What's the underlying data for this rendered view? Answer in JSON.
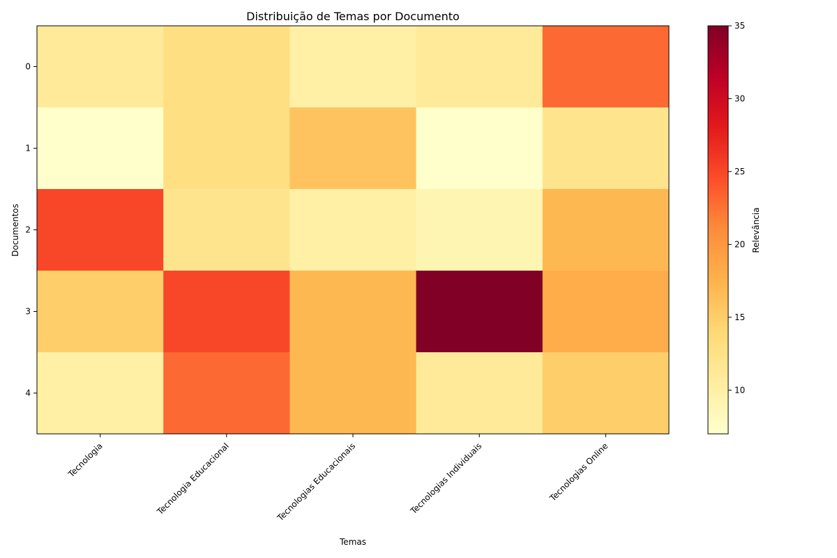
{
  "chart_data": {
    "type": "heatmap",
    "title": "Distribuição de Temas por Documento",
    "xlabel": "Temas",
    "ylabel": "Documentos",
    "colorbar_label": "Relevância",
    "x_categories": [
      "Tecnologia",
      "Tecnologia Educacional",
      "Tecnologias Educacionais",
      "Tecnologias Individuais",
      "Tecnologias Online"
    ],
    "y_categories": [
      "0",
      "1",
      "2",
      "3",
      "4"
    ],
    "values": [
      [
        11,
        13,
        10,
        11,
        23
      ],
      [
        7,
        13,
        16,
        7,
        12
      ],
      [
        25,
        12,
        10,
        9,
        17
      ],
      [
        15,
        25,
        17,
        35,
        18
      ],
      [
        10,
        23,
        17,
        11,
        15
      ]
    ],
    "colorbar_range": [
      7,
      35
    ],
    "colorbar_ticks": [
      10,
      15,
      20,
      25,
      30,
      35
    ],
    "colormap": "YlOrRd",
    "colormap_stops": [
      "#ffffcc",
      "#ffeda0",
      "#fed976",
      "#feb24c",
      "#fd8d3c",
      "#fc4e2a",
      "#e31a1c",
      "#bd0026",
      "#800026"
    ]
  }
}
